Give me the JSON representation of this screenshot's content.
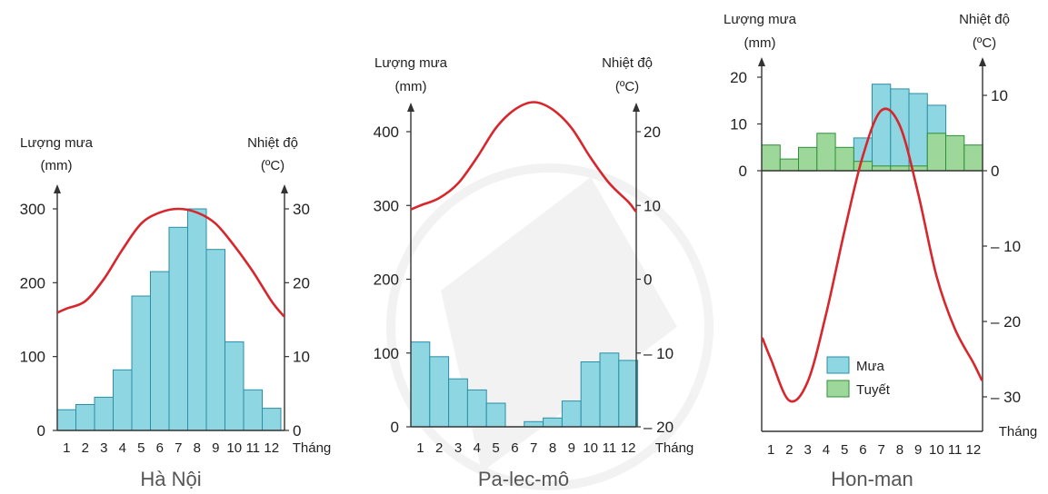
{
  "chart_data": [
    {
      "type": "bar",
      "title": "Hà Nội",
      "left_label": [
        "Lượng mưa",
        "(mm)"
      ],
      "right_label": [
        "Nhiệt độ",
        "(ºC)"
      ],
      "month_label": "Tháng",
      "months": [
        "1",
        "2",
        "3",
        "4",
        "5",
        "6",
        "7",
        "8",
        "9",
        "10",
        "11",
        "12"
      ],
      "left_ticks": [
        "0",
        "100",
        "200",
        "300"
      ],
      "left_tick_values": [
        0,
        100,
        200,
        300
      ],
      "right_ticks": [
        "0",
        "10",
        "20",
        "30"
      ],
      "right_tick_values": [
        0,
        10,
        20,
        30
      ],
      "left_lim": [
        0,
        300
      ],
      "right_lim": [
        0,
        30
      ],
      "series": [
        {
          "name": "",
          "kind": "rain",
          "values": [
            28,
            35,
            45,
            82,
            182,
            215,
            275,
            300,
            245,
            120,
            55,
            30
          ]
        },
        {
          "name": "",
          "kind": "temperature",
          "values": [
            16.5,
            17.5,
            20.5,
            24.5,
            28,
            29.5,
            30,
            29.5,
            28,
            25,
            21.5,
            17.5
          ]
        }
      ]
    },
    {
      "type": "bar",
      "title": "Pa-lec-mô",
      "left_label": [
        "Lượng mưa",
        "(mm)"
      ],
      "right_label": [
        "Nhiệt độ",
        "(ºC)"
      ],
      "month_label": "Tháng",
      "months": [
        "1",
        "2",
        "3",
        "4",
        "5",
        "6",
        "7",
        "8",
        "9",
        "10",
        "11",
        "12"
      ],
      "left_ticks": [
        "0",
        "100",
        "200",
        "300",
        "400"
      ],
      "left_tick_values": [
        0,
        100,
        200,
        300,
        400
      ],
      "right_ticks": [
        "– 20",
        "– 10",
        "0",
        "10",
        "20"
      ],
      "right_tick_values": [
        -20,
        -10,
        0,
        10,
        20
      ],
      "left_lim": [
        0,
        400
      ],
      "right_lim": [
        -20,
        20
      ],
      "series": [
        {
          "name": "",
          "kind": "rain",
          "values": [
            115,
            95,
            65,
            50,
            32,
            0,
            7,
            12,
            35,
            88,
            100,
            90
          ]
        },
        {
          "name": "",
          "kind": "temperature",
          "values": [
            10,
            11,
            13,
            16.5,
            20.5,
            23,
            24,
            23,
            20.5,
            16.5,
            13,
            10.5
          ]
        }
      ]
    },
    {
      "type": "bar",
      "title": "Hon-man",
      "left_label": [
        "Lượng mưa",
        "(mm)"
      ],
      "right_label": [
        "Nhiệt độ",
        "(ºC)"
      ],
      "month_label": "Tháng",
      "months": [
        "1",
        "2",
        "3",
        "4",
        "5",
        "6",
        "7",
        "8",
        "9",
        "10",
        "11",
        "12"
      ],
      "left_ticks": [
        "0",
        "10",
        "20"
      ],
      "left_tick_values": [
        0,
        10,
        20
      ],
      "right_ticks": [
        "– 30",
        "– 20",
        "– 10",
        "0",
        "10"
      ],
      "right_tick_values": [
        -30,
        -20,
        -10,
        0,
        10
      ],
      "right_lim": [
        -30,
        10
      ],
      "legend": [
        {
          "label": "Mưa",
          "kind": "rain"
        },
        {
          "label": "Tuyết",
          "kind": "snow"
        }
      ],
      "series": [
        {
          "name": "Mưa",
          "kind": "rain",
          "values": [
            0,
            0,
            0,
            0,
            2,
            7,
            18.5,
            17.5,
            16.5,
            14,
            0,
            0
          ]
        },
        {
          "name": "Tuyết",
          "kind": "snow",
          "values": [
            5.5,
            2.5,
            5,
            8,
            5,
            2,
            1,
            1,
            1,
            8,
            7.5,
            5.5
          ]
        },
        {
          "name": "",
          "kind": "temperature",
          "values": [
            -25,
            -30.5,
            -28,
            -19,
            -8,
            2,
            8,
            6,
            -3,
            -14,
            -21,
            -25.5
          ]
        }
      ]
    }
  ]
}
